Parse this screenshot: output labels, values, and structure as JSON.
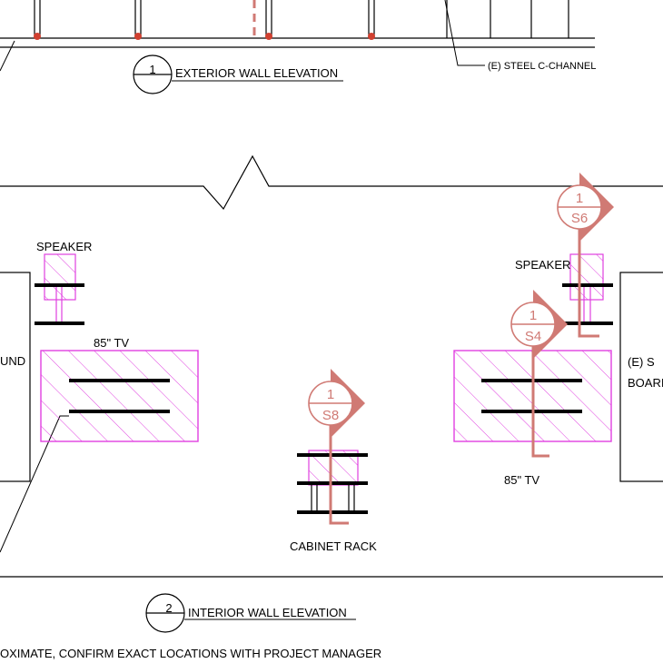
{
  "top_elevation": {
    "number": "1",
    "title": "EXTERIOR WALL ELEVATION",
    "callout": "(E) STEEL C-CHANNEL"
  },
  "interior_elevation": {
    "number": "2",
    "title": "INTERIOR WALL ELEVATION"
  },
  "labels": {
    "speaker_left": "SPEAKER",
    "speaker_right": "SPEAKER",
    "tv_left": "85\" TV",
    "tv_right": "85\" TV",
    "cabinet": "CABINET RACK",
    "left_edge_text": "UND",
    "right_edge_line1": "(E) S",
    "right_edge_line2": "BOARI"
  },
  "section_cuts": [
    {
      "num": "1",
      "sheet": "S6"
    },
    {
      "num": "1",
      "sheet": "S4"
    },
    {
      "num": "1",
      "sheet": "S8"
    }
  ],
  "note": "OXIMATE, CONFIRM EXACT LOCATIONS WITH PROJECT MANAGER",
  "colors": {
    "line": "#000000",
    "magenta": "#e040e0",
    "cut": "#d07a74",
    "support": "#d04030"
  }
}
